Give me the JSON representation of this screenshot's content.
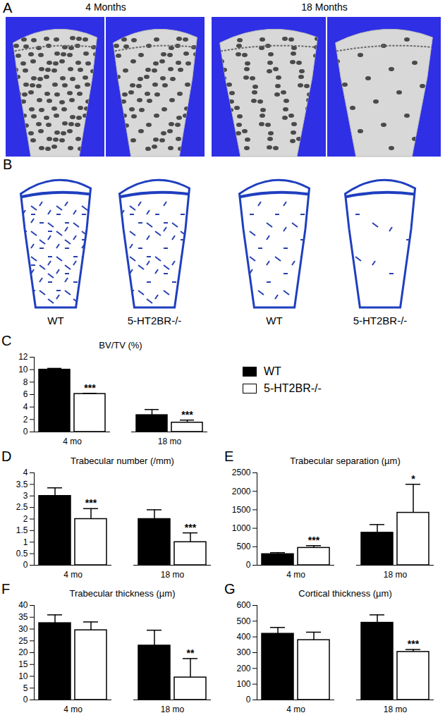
{
  "figure": {
    "panel_a": {
      "label": "A",
      "titles": [
        "4 Months",
        "18 Months"
      ]
    },
    "panel_b": {
      "label": "B",
      "captions": [
        "WT",
        "5-HT2BR-/-",
        "WT",
        "5-HT2BR-/-"
      ]
    }
  },
  "chart_data": [
    {
      "type": "bar",
      "panel": "C",
      "title": "BV/TV (%)",
      "categories": [
        "4 mo",
        "18 mo"
      ],
      "series": [
        {
          "name": "WT",
          "color": "#000000",
          "values": [
            10.0,
            2.7
          ],
          "errors": [
            0.2,
            0.9
          ]
        },
        {
          "name": "5-HT2BR-/-",
          "color": "#ffffff",
          "values": [
            6.1,
            1.5
          ],
          "errors": [
            0.1,
            0.4
          ]
        }
      ],
      "annotations": [
        "***",
        "***"
      ],
      "ylim": [
        0,
        12
      ],
      "yticks": [
        0,
        2,
        4,
        6,
        8,
        10,
        12
      ],
      "legend": "right"
    },
    {
      "type": "bar",
      "panel": "D",
      "title": "Trabecular number (/mm)",
      "categories": [
        "4 mo",
        "18 mo"
      ],
      "series": [
        {
          "name": "WT",
          "color": "#000000",
          "values": [
            3.0,
            2.0
          ],
          "errors": [
            0.35,
            0.4
          ]
        },
        {
          "name": "5-HT2BR-/-",
          "color": "#ffffff",
          "values": [
            2.0,
            1.0
          ],
          "errors": [
            0.45,
            0.4
          ]
        }
      ],
      "annotations": [
        "***",
        "***"
      ],
      "ylim": [
        0,
        4
      ],
      "yticks": [
        0,
        0.5,
        1,
        1.5,
        2,
        2.5,
        3,
        3.5,
        4
      ]
    },
    {
      "type": "bar",
      "panel": "E",
      "title": "Trabecular separation (µm)",
      "categories": [
        "4 mo",
        "18 mo"
      ],
      "series": [
        {
          "name": "WT",
          "color": "#000000",
          "values": [
            300,
            880
          ],
          "errors": [
            40,
            220
          ]
        },
        {
          "name": "5-HT2BR-/-",
          "color": "#ffffff",
          "values": [
            470,
            1420
          ],
          "errors": [
            60,
            770
          ]
        }
      ],
      "annotations": [
        "***",
        "*"
      ],
      "ylim": [
        0,
        2500
      ],
      "yticks": [
        0,
        500,
        1000,
        1500,
        2000,
        2500
      ]
    },
    {
      "type": "bar",
      "panel": "F",
      "title": "Trabecular thickness (µm)",
      "categories": [
        "4 mo",
        "18 mo"
      ],
      "series": [
        {
          "name": "WT",
          "color": "#000000",
          "values": [
            32.5,
            23
          ],
          "errors": [
            3.5,
            6.5
          ]
        },
        {
          "name": "5-HT2BR-/-",
          "color": "#ffffff",
          "values": [
            29.5,
            9.5
          ],
          "errors": [
            3.5,
            8
          ]
        }
      ],
      "annotations": [
        null,
        "**"
      ],
      "ylim": [
        0,
        40
      ],
      "yticks": [
        0,
        5,
        10,
        15,
        20,
        25,
        30,
        35,
        40
      ]
    },
    {
      "type": "bar",
      "panel": "G",
      "title": "Cortical thickness (µm)",
      "categories": [
        "4 mo",
        "18 mo"
      ],
      "series": [
        {
          "name": "WT",
          "color": "#000000",
          "values": [
            420,
            490
          ],
          "errors": [
            40,
            50
          ]
        },
        {
          "name": "5-HT2BR-/-",
          "color": "#ffffff",
          "values": [
            380,
            305
          ],
          "errors": [
            50,
            15
          ]
        }
      ],
      "annotations": [
        null,
        "***"
      ],
      "ylim": [
        0,
        600
      ],
      "yticks": [
        0,
        100,
        200,
        300,
        400,
        500,
        600
      ]
    }
  ]
}
